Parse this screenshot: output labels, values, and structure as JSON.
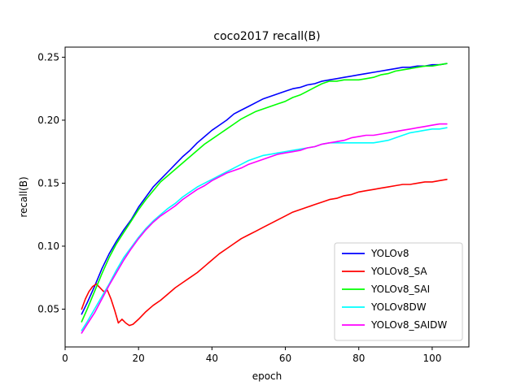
{
  "chart_data": {
    "type": "line",
    "title": "coco2017 recall(B)",
    "xlabel": "epoch",
    "ylabel": "recall(B)",
    "xlim": [
      0,
      110
    ],
    "ylim": [
      0.02,
      0.258
    ],
    "xticks": [
      0,
      20,
      40,
      60,
      80,
      100
    ],
    "yticks": [
      0.05,
      0.1,
      0.15,
      0.2,
      0.25
    ],
    "ytick_labels": [
      "0.05",
      "0.10",
      "0.15",
      "0.20",
      "0.25"
    ],
    "grid": false,
    "legend_position": "lower-right",
    "series": [
      {
        "name": "YOLOv8",
        "color": "#0000ff",
        "x": [
          4.5,
          6,
          8,
          10,
          12,
          14,
          16,
          18,
          20,
          22,
          24,
          26,
          28,
          30,
          32,
          34,
          36,
          38,
          40,
          42,
          44,
          46,
          48,
          50,
          52,
          54,
          56,
          58,
          60,
          62,
          64,
          66,
          68,
          70,
          72,
          74,
          76,
          78,
          80,
          82,
          84,
          86,
          88,
          90,
          92,
          94,
          96,
          98,
          100,
          102,
          104
        ],
        "y": [
          0.046,
          0.055,
          0.068,
          0.082,
          0.094,
          0.104,
          0.113,
          0.121,
          0.131,
          0.139,
          0.147,
          0.153,
          0.159,
          0.165,
          0.171,
          0.176,
          0.182,
          0.187,
          0.192,
          0.196,
          0.2,
          0.205,
          0.208,
          0.211,
          0.214,
          0.217,
          0.219,
          0.221,
          0.223,
          0.225,
          0.226,
          0.228,
          0.229,
          0.231,
          0.232,
          0.233,
          0.234,
          0.235,
          0.236,
          0.237,
          0.238,
          0.239,
          0.24,
          0.241,
          0.242,
          0.242,
          0.243,
          0.243,
          0.244,
          0.244,
          0.245
        ]
      },
      {
        "name": "YOLOv8_SA",
        "color": "#ff0000",
        "x": [
          4.5,
          5.5,
          6.5,
          7.5,
          8.5,
          9.5,
          10.5,
          11.5,
          12.5,
          13.5,
          14.5,
          15.5,
          16.5,
          17.5,
          18.5,
          20,
          22,
          24,
          26,
          28,
          30,
          32,
          34,
          36,
          38,
          40,
          42,
          44,
          46,
          48,
          50,
          52,
          54,
          56,
          58,
          60,
          62,
          64,
          66,
          68,
          70,
          72,
          74,
          76,
          78,
          80,
          82,
          84,
          86,
          88,
          90,
          92,
          94,
          96,
          98,
          100,
          102,
          104
        ],
        "y": [
          0.05,
          0.058,
          0.064,
          0.068,
          0.07,
          0.067,
          0.064,
          0.065,
          0.058,
          0.049,
          0.039,
          0.042,
          0.039,
          0.037,
          0.038,
          0.042,
          0.048,
          0.053,
          0.057,
          0.062,
          0.067,
          0.071,
          0.075,
          0.079,
          0.084,
          0.089,
          0.094,
          0.098,
          0.102,
          0.106,
          0.109,
          0.112,
          0.115,
          0.118,
          0.121,
          0.124,
          0.127,
          0.129,
          0.131,
          0.133,
          0.135,
          0.137,
          0.138,
          0.14,
          0.141,
          0.143,
          0.144,
          0.145,
          0.146,
          0.147,
          0.148,
          0.149,
          0.149,
          0.15,
          0.151,
          0.151,
          0.152,
          0.153
        ]
      },
      {
        "name": "YOLOv8_SAI",
        "color": "#00ff00",
        "x": [
          4.5,
          6,
          8,
          10,
          12,
          14,
          16,
          18,
          20,
          22,
          24,
          26,
          28,
          30,
          32,
          34,
          36,
          38,
          40,
          42,
          44,
          46,
          48,
          50,
          52,
          54,
          56,
          58,
          60,
          62,
          64,
          66,
          68,
          70,
          72,
          74,
          76,
          78,
          80,
          82,
          84,
          86,
          88,
          90,
          92,
          94,
          96,
          98,
          100,
          102,
          104
        ],
        "y": [
          0.04,
          0.05,
          0.064,
          0.078,
          0.091,
          0.102,
          0.111,
          0.12,
          0.129,
          0.137,
          0.144,
          0.151,
          0.156,
          0.161,
          0.166,
          0.171,
          0.176,
          0.181,
          0.185,
          0.189,
          0.193,
          0.197,
          0.201,
          0.204,
          0.207,
          0.209,
          0.211,
          0.213,
          0.215,
          0.218,
          0.22,
          0.223,
          0.226,
          0.229,
          0.231,
          0.231,
          0.232,
          0.232,
          0.232,
          0.233,
          0.234,
          0.236,
          0.237,
          0.239,
          0.24,
          0.241,
          0.242,
          0.243,
          0.243,
          0.244,
          0.245
        ]
      },
      {
        "name": "YOLOv8DW",
        "color": "#00ffff",
        "x": [
          4.5,
          6,
          8,
          10,
          12,
          14,
          16,
          18,
          20,
          22,
          24,
          26,
          28,
          30,
          32,
          34,
          36,
          38,
          40,
          42,
          44,
          46,
          48,
          50,
          52,
          54,
          56,
          58,
          60,
          62,
          64,
          66,
          68,
          70,
          72,
          74,
          76,
          78,
          80,
          82,
          84,
          86,
          88,
          90,
          92,
          94,
          96,
          98,
          100,
          102,
          104
        ],
        "y": [
          0.033,
          0.04,
          0.05,
          0.06,
          0.07,
          0.081,
          0.091,
          0.099,
          0.107,
          0.114,
          0.12,
          0.125,
          0.13,
          0.134,
          0.139,
          0.143,
          0.147,
          0.15,
          0.153,
          0.156,
          0.159,
          0.162,
          0.165,
          0.168,
          0.17,
          0.172,
          0.173,
          0.174,
          0.175,
          0.176,
          0.177,
          0.178,
          0.179,
          0.181,
          0.182,
          0.182,
          0.182,
          0.182,
          0.182,
          0.182,
          0.182,
          0.183,
          0.184,
          0.186,
          0.188,
          0.19,
          0.191,
          0.192,
          0.193,
          0.193,
          0.194
        ]
      },
      {
        "name": "YOLOv8_SAIDW",
        "color": "#ff00ff",
        "x": [
          4.5,
          6,
          8,
          10,
          12,
          14,
          16,
          18,
          20,
          22,
          24,
          26,
          28,
          30,
          32,
          34,
          36,
          38,
          40,
          42,
          44,
          46,
          48,
          50,
          52,
          54,
          56,
          58,
          60,
          62,
          64,
          66,
          68,
          70,
          72,
          74,
          76,
          78,
          80,
          82,
          84,
          86,
          88,
          90,
          92,
          94,
          96,
          98,
          100,
          102,
          104
        ],
        "y": [
          0.031,
          0.038,
          0.047,
          0.058,
          0.069,
          0.079,
          0.089,
          0.098,
          0.106,
          0.113,
          0.119,
          0.124,
          0.128,
          0.132,
          0.137,
          0.141,
          0.145,
          0.148,
          0.152,
          0.155,
          0.158,
          0.16,
          0.162,
          0.165,
          0.167,
          0.169,
          0.171,
          0.173,
          0.174,
          0.175,
          0.176,
          0.178,
          0.179,
          0.181,
          0.182,
          0.183,
          0.184,
          0.186,
          0.187,
          0.188,
          0.188,
          0.189,
          0.19,
          0.191,
          0.192,
          0.193,
          0.194,
          0.195,
          0.196,
          0.197,
          0.197
        ]
      }
    ]
  }
}
